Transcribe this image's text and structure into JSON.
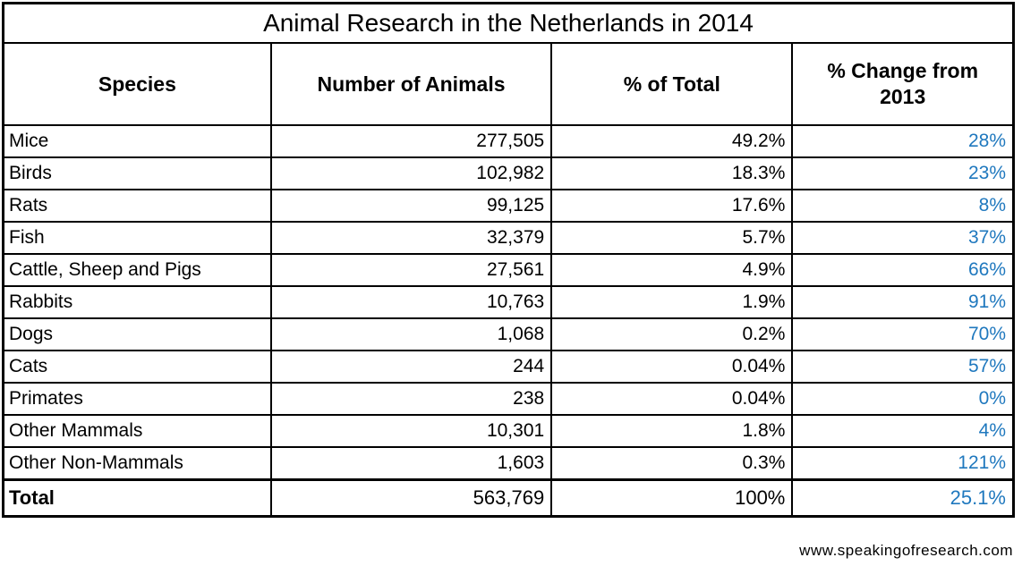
{
  "title": "Animal Research in the Netherlands in 2014",
  "columns": {
    "species": "Species",
    "number": "Number of Animals",
    "pct_total": "% of Total",
    "pct_change": "% Change from 2013"
  },
  "rows": [
    {
      "species": "Mice",
      "number": "277,505",
      "pct_total": "49.2%",
      "pct_change": "28%"
    },
    {
      "species": "Birds",
      "number": "102,982",
      "pct_total": "18.3%",
      "pct_change": "23%"
    },
    {
      "species": "Rats",
      "number": "99,125",
      "pct_total": "17.6%",
      "pct_change": "8%"
    },
    {
      "species": "Fish",
      "number": "32,379",
      "pct_total": "5.7%",
      "pct_change": "37%"
    },
    {
      "species": "Cattle, Sheep and Pigs",
      "number": "27,561",
      "pct_total": "4.9%",
      "pct_change": "66%"
    },
    {
      "species": "Rabbits",
      "number": "10,763",
      "pct_total": "1.9%",
      "pct_change": "91%"
    },
    {
      "species": "Dogs",
      "number": "1,068",
      "pct_total": "0.2%",
      "pct_change": "70%"
    },
    {
      "species": "Cats",
      "number": "244",
      "pct_total": "0.04%",
      "pct_change": "57%"
    },
    {
      "species": "Primates",
      "number": "238",
      "pct_total": "0.04%",
      "pct_change": "0%"
    },
    {
      "species": "Other Mammals",
      "number": "10,301",
      "pct_total": "1.8%",
      "pct_change": "4%"
    },
    {
      "species": "Other Non-Mammals",
      "number": "1,603",
      "pct_total": "0.3%",
      "pct_change": "121%"
    }
  ],
  "total_row": {
    "species": "Total",
    "number": "563,769",
    "pct_total": "100%",
    "pct_change": "25.1%"
  },
  "footer": "www.speakingofresearch.com",
  "colors": {
    "change_blue": "#1F78BE",
    "border_black": "#000000",
    "background": "#FFFFFF"
  },
  "chart_data": {
    "type": "table",
    "title": "Animal Research in the Netherlands in 2014",
    "columns": [
      "Species",
      "Number of Animals",
      "% of Total",
      "% Change from 2013"
    ],
    "categories": [
      "Mice",
      "Birds",
      "Rats",
      "Fish",
      "Cattle, Sheep and Pigs",
      "Rabbits",
      "Dogs",
      "Cats",
      "Primates",
      "Other Mammals",
      "Other Non-Mammals"
    ],
    "series": [
      {
        "name": "Number of Animals",
        "values": [
          277505,
          102982,
          99125,
          32379,
          27561,
          10763,
          1068,
          244,
          238,
          10301,
          1603
        ]
      },
      {
        "name": "% of Total",
        "values": [
          49.2,
          18.3,
          17.6,
          5.7,
          4.9,
          1.9,
          0.2,
          0.04,
          0.04,
          1.8,
          0.3
        ]
      },
      {
        "name": "% Change from 2013",
        "values": [
          28,
          23,
          8,
          37,
          66,
          91,
          70,
          57,
          0,
          4,
          121
        ]
      }
    ],
    "totals": {
      "Number of Animals": 563769,
      "% of Total": 100,
      "% Change from 2013": 25.1
    },
    "annotations": [
      "www.speakingofresearch.com"
    ]
  }
}
